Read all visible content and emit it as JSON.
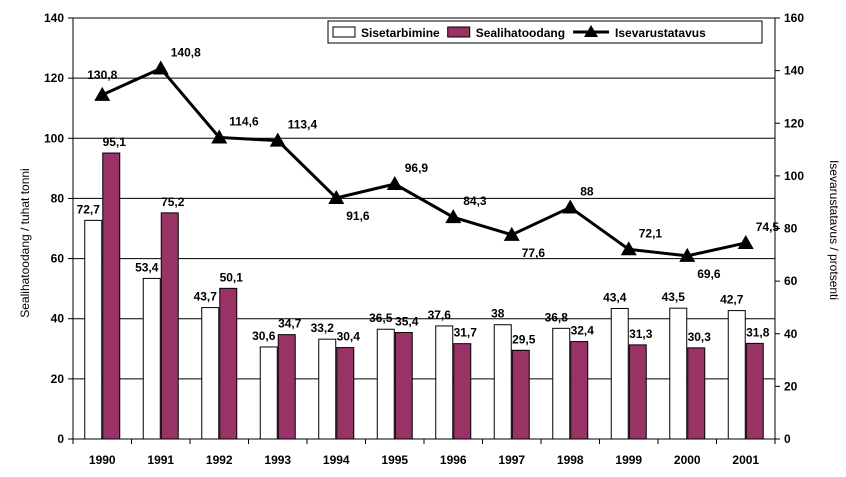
{
  "chart_data": {
    "type": "bar",
    "categories": [
      "1990",
      "1991",
      "1992",
      "1993",
      "1994",
      "1995",
      "1996",
      "1997",
      "1998",
      "1999",
      "2000",
      "2001"
    ],
    "series": [
      {
        "name": "Sisetarbimine",
        "kind": "bar",
        "axis": "left",
        "color": "#ffffff",
        "values": [
          72.7,
          53.4,
          43.7,
          30.6,
          33.2,
          36.5,
          37.6,
          38,
          36.8,
          43.4,
          43.5,
          42.7
        ],
        "labels": [
          "72,7",
          "53,4",
          "43,7",
          "30,6",
          "33,2",
          "36,5",
          "37,6",
          "38",
          "36,8",
          "43,4",
          "43,5",
          "42,7"
        ]
      },
      {
        "name": "Sealihatoodang",
        "kind": "bar",
        "axis": "left",
        "color": "#993366",
        "values": [
          95.1,
          75.2,
          50.1,
          34.7,
          30.4,
          35.4,
          31.7,
          29.5,
          32.4,
          31.3,
          30.3,
          31.8
        ],
        "labels": [
          "95,1",
          "75,2",
          "50,1",
          "34,7",
          "30,4",
          "35,4",
          "31,7",
          "29,5",
          "32,4",
          "31,3",
          "30,3",
          "31,8"
        ]
      },
      {
        "name": "Isevarustatavus",
        "kind": "line",
        "axis": "right",
        "color": "#000000",
        "values": [
          130.8,
          140.8,
          114.6,
          113.4,
          91.6,
          96.9,
          84.3,
          77.6,
          88,
          72.1,
          69.6,
          74.5
        ],
        "labels": [
          "130,8",
          "140,8",
          "114,6",
          "113,4",
          "91,6",
          "96,9",
          "84,3",
          "77,6",
          "88",
          "72,1",
          "69,6",
          "74,5"
        ]
      }
    ],
    "ylabel": "Sealihatoodang / tuhat tonni",
    "y2label": "Isevarustatavus / protsenti",
    "ylim": [
      0,
      140
    ],
    "yticks": [
      0,
      20,
      40,
      60,
      80,
      100,
      120,
      140
    ],
    "y2lim": [
      0,
      160
    ],
    "y2ticks": [
      0,
      20,
      40,
      60,
      80,
      100,
      120,
      140,
      160
    ],
    "grid": true,
    "legend_position": "top-right"
  }
}
